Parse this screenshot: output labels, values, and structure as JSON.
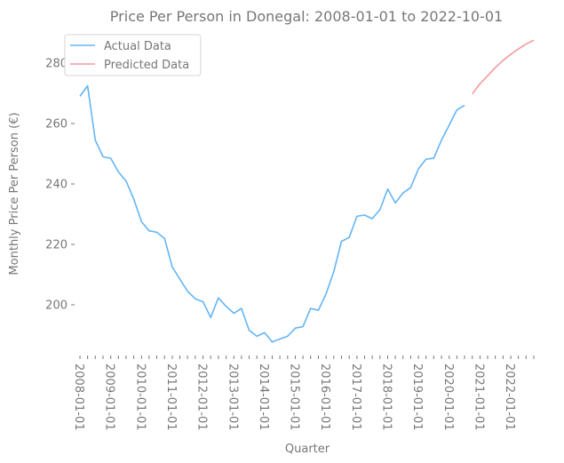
{
  "chart_data": {
    "type": "line",
    "title": "Price Per Person in Donegal: 2008-01-01 to 2022-10-01",
    "xlabel": "Quarter",
    "ylabel": "Monthly Price Per Person (€)",
    "ylim": [
      183,
      290
    ],
    "yticks": [
      200,
      220,
      240,
      260,
      280
    ],
    "xtick_labels": [
      "2008-01-01",
      "2009-01-01",
      "2010-01-01",
      "2011-01-01",
      "2012-01-01",
      "2013-01-01",
      "2014-01-01",
      "2015-01-01",
      "2016-01-01",
      "2017-01-01",
      "2018-01-01",
      "2019-01-01",
      "2020-01-01",
      "2021-01-01",
      "2022-01-01"
    ],
    "legend": {
      "position": "top-left"
    },
    "grid": false,
    "colors": {
      "actual": "#64b5f6",
      "predicted": "#f4999b",
      "text": "#777777"
    },
    "series": [
      {
        "name": "Actual Data",
        "x": [
          "2008-01-01",
          "2008-04-01",
          "2008-07-01",
          "2008-10-01",
          "2009-01-01",
          "2009-04-01",
          "2009-07-01",
          "2009-10-01",
          "2010-01-01",
          "2010-04-01",
          "2010-07-01",
          "2010-10-01",
          "2011-01-01",
          "2011-04-01",
          "2011-07-01",
          "2011-10-01",
          "2012-01-01",
          "2012-04-01",
          "2012-07-01",
          "2012-10-01",
          "2013-01-01",
          "2013-04-01",
          "2013-07-01",
          "2013-10-01",
          "2014-01-01",
          "2014-04-01",
          "2014-07-01",
          "2014-10-01",
          "2015-01-01",
          "2015-04-01",
          "2015-07-01",
          "2015-10-01",
          "2016-01-01",
          "2016-04-01",
          "2016-07-01",
          "2016-10-01",
          "2017-01-01",
          "2017-04-01",
          "2017-07-01",
          "2017-10-01",
          "2018-01-01",
          "2018-04-01",
          "2018-07-01",
          "2018-10-01",
          "2019-01-01",
          "2019-04-01",
          "2019-07-01",
          "2019-10-01",
          "2020-01-01",
          "2020-04-01"
        ],
        "values": [
          269,
          272.5,
          254.5,
          249,
          248.5,
          244,
          241,
          235,
          227.5,
          224.5,
          224,
          222,
          212.5,
          208.5,
          204.5,
          202,
          201,
          195.8,
          202.3,
          199.5,
          197.2,
          198.8,
          191.6,
          189.6,
          190.8,
          187.7,
          188.7,
          189.6,
          192.3,
          192.8,
          198.8,
          198.2,
          203.7,
          211,
          221,
          222.3,
          229.3,
          229.7,
          228.5,
          231.5,
          238.3,
          233.7,
          237,
          238.8,
          245,
          248.2,
          248.5,
          254.5,
          259.5,
          264.5
        ]
      },
      {
        "name": "Actual Data (end)",
        "x": [
          "2020-04-01",
          "2020-07-01"
        ],
        "values": [
          264.5,
          266
        ]
      },
      {
        "name": "Predicted Data",
        "x": [
          "2020-10-01",
          "2021-01-01",
          "2021-04-01",
          "2021-07-01",
          "2021-10-01",
          "2022-01-01",
          "2022-04-01",
          "2022-07-01",
          "2022-10-01"
        ],
        "values": [
          269.8,
          273.2,
          275.8,
          278.5,
          280.9,
          282.9,
          284.7,
          286.3,
          287.6
        ]
      }
    ]
  }
}
